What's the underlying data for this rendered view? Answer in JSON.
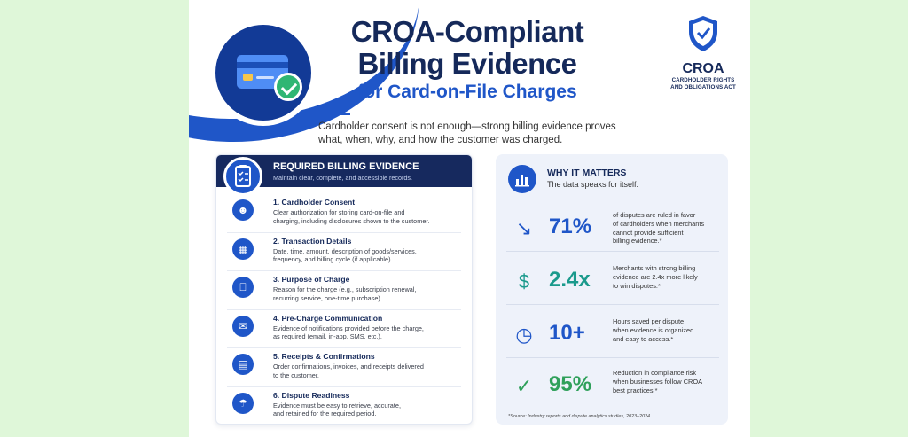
{
  "header": {
    "title_line1": "CROA-Compliant",
    "title_line2": "Billing Evidence",
    "subtitle": "for Card-on-File Charges",
    "intro_line1": "Cardholder consent is not enough—strong billing evidence proves",
    "intro_line2": "what, when, why, and how the customer was charged."
  },
  "logo": {
    "name": "CROA",
    "sub_line1": "CARDHOLDER RIGHTS",
    "sub_line2": "AND OBLIGATIONS ACT"
  },
  "evidence": {
    "title": "REQUIRED BILLING EVIDENCE",
    "subtitle": "Maintain clear, complete, and accessible records.",
    "items": [
      {
        "icon": "person-icon",
        "title": "1. Cardholder Consent",
        "desc1": "Clear authorization for storing card-on-file and",
        "desc2": "charging, including disclosures shown to the customer."
      },
      {
        "icon": "calendar-icon",
        "title": "2. Transaction Details",
        "desc1": "Date, time, amount, description of goods/services,",
        "desc2": "frequency, and billing cycle (if applicable)."
      },
      {
        "icon": "cart-icon",
        "title": "3. Purpose of Charge",
        "desc1": "Reason for the charge (e.g., subscription renewal,",
        "desc2": "recurring service, one-time purchase)."
      },
      {
        "icon": "envelope-icon",
        "title": "4. Pre-Charge Communication",
        "desc1": "Evidence of notifications provided before the charge,",
        "desc2": "as required (email, in-app, SMS, etc.)."
      },
      {
        "icon": "document-icon",
        "title": "5. Receipts & Confirmations",
        "desc1": "Order confirmations, invoices, and receipts delivered",
        "desc2": "to the customer."
      },
      {
        "icon": "shield-icon",
        "title": "6. Dispute Readiness",
        "desc1": "Evidence must be easy to retrieve, accurate,",
        "desc2": "and retained for the required period."
      }
    ]
  },
  "why": {
    "title": "WHY IT MATTERS",
    "subtitle": "The data speaks for itself.",
    "stats": [
      {
        "icon": "chart-down-icon",
        "value": "71%",
        "color": "#1f56c8",
        "l1": "of disputes are ruled in favor",
        "l2": "of cardholders when merchants",
        "l3": "cannot provide sufficient",
        "l4": "billing evidence.*"
      },
      {
        "icon": "dollar-icon",
        "value": "2.4x",
        "color": "#1a9a8c",
        "l1": "Merchants with strong billing",
        "l2": "evidence are 2.4x more likely",
        "l3": "to win disputes.*",
        "l4": ""
      },
      {
        "icon": "clock-icon",
        "value": "10+",
        "color": "#1f56c8",
        "l1": "Hours saved per dispute",
        "l2": "when evidence is organized",
        "l3": "and easy to access.*",
        "l4": ""
      },
      {
        "icon": "shield-check-icon",
        "value": "95%",
        "color": "#2fa05a",
        "l1": "Reduction in compliance risk",
        "l2": "when businesses follow CROA",
        "l3": "best practices.*",
        "l4": ""
      }
    ],
    "source": "*Source: Industry reports and dispute analytics studies, 2023–2024"
  }
}
